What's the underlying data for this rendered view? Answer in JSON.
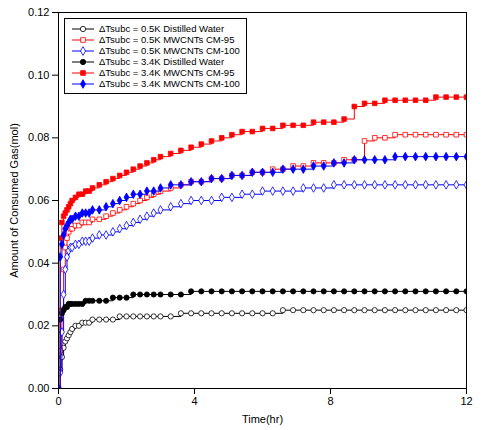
{
  "chart_data": {
    "type": "line",
    "line_style": "steps-post",
    "xlabel": "Time(hr)",
    "ylabel": "Amount of Consumed Gas(mol)",
    "xlim": [
      0,
      12
    ],
    "ylim": [
      0,
      0.12
    ],
    "xticks": [
      0,
      4,
      8,
      12
    ],
    "yticks": [
      {
        "value": 0,
        "label": "0.00"
      },
      {
        "value": 0.02,
        "label": "0.02"
      },
      {
        "value": 0.04,
        "label": "0.04"
      },
      {
        "value": 0.06,
        "label": "0.06"
      },
      {
        "value": 0.08,
        "label": "0.08"
      },
      {
        "value": 0.1,
        "label": "0.10"
      },
      {
        "value": 0.12,
        "label": "0.12"
      }
    ],
    "grid": false,
    "legend": "upper left",
    "series": [
      {
        "name": "ΔTsubc = 0.5K Distilled Water",
        "color": "black",
        "marker": "circle-open",
        "x": [
          0.05,
          0.1,
          0.15,
          0.2,
          0.25,
          0.3,
          0.35,
          0.4,
          0.5,
          0.6,
          0.7,
          0.8,
          0.9,
          1.0,
          1.2,
          1.4,
          1.6,
          1.8,
          2.0,
          2.2,
          2.4,
          2.6,
          2.8,
          3.0,
          3.3,
          3.6,
          3.9,
          4.2,
          4.5,
          4.8,
          5.1,
          5.4,
          5.7,
          6.0,
          6.3,
          6.6,
          6.9,
          7.2,
          7.5,
          7.8,
          8.1,
          8.4,
          8.7,
          9.0,
          9.3,
          9.6,
          9.9,
          10.2,
          10.5,
          10.8,
          11.1,
          11.4,
          11.7,
          12.0
        ],
        "values": [
          0.006,
          0.01,
          0.013,
          0.015,
          0.016,
          0.017,
          0.018,
          0.019,
          0.02,
          0.02,
          0.021,
          0.021,
          0.021,
          0.022,
          0.022,
          0.022,
          0.022,
          0.023,
          0.023,
          0.023,
          0.023,
          0.023,
          0.023,
          0.023,
          0.023,
          0.024,
          0.024,
          0.024,
          0.024,
          0.024,
          0.024,
          0.024,
          0.024,
          0.024,
          0.024,
          0.025,
          0.025,
          0.025,
          0.025,
          0.025,
          0.025,
          0.025,
          0.025,
          0.025,
          0.025,
          0.025,
          0.025,
          0.025,
          0.025,
          0.025,
          0.025,
          0.025,
          0.025,
          0.025
        ]
      },
      {
        "name": "ΔTsubc = 0.5K MWCNTs CM-95",
        "color": "red",
        "marker": "square-open",
        "x": [
          0.05,
          0.1,
          0.15,
          0.2,
          0.25,
          0.3,
          0.35,
          0.4,
          0.5,
          0.6,
          0.7,
          0.8,
          0.9,
          1.0,
          1.2,
          1.4,
          1.6,
          1.8,
          2.0,
          2.2,
          2.4,
          2.6,
          2.8,
          3.0,
          3.3,
          3.6,
          3.9,
          4.2,
          4.5,
          4.8,
          5.1,
          5.4,
          5.7,
          6.0,
          6.3,
          6.6,
          6.9,
          7.2,
          7.5,
          7.8,
          8.1,
          8.4,
          8.7,
          9.0,
          9.3,
          9.6,
          9.9,
          10.2,
          10.5,
          10.8,
          11.1,
          11.4,
          11.7,
          12.0
        ],
        "values": [
          0.012,
          0.025,
          0.038,
          0.045,
          0.048,
          0.05,
          0.051,
          0.051,
          0.052,
          0.052,
          0.053,
          0.053,
          0.053,
          0.054,
          0.054,
          0.055,
          0.056,
          0.057,
          0.058,
          0.059,
          0.06,
          0.061,
          0.062,
          0.063,
          0.064,
          0.065,
          0.066,
          0.066,
          0.067,
          0.067,
          0.068,
          0.068,
          0.069,
          0.069,
          0.07,
          0.07,
          0.071,
          0.071,
          0.072,
          0.072,
          0.072,
          0.073,
          0.073,
          0.079,
          0.08,
          0.08,
          0.081,
          0.081,
          0.081,
          0.081,
          0.081,
          0.081,
          0.081,
          0.081
        ]
      },
      {
        "name": "ΔTsubc = 0.5K MWCNTs CM-100",
        "color": "blue",
        "marker": "diamond-open",
        "x": [
          0.05,
          0.1,
          0.15,
          0.2,
          0.25,
          0.3,
          0.35,
          0.4,
          0.5,
          0.6,
          0.7,
          0.8,
          0.9,
          1.0,
          1.2,
          1.4,
          1.6,
          1.8,
          2.0,
          2.2,
          2.4,
          2.6,
          2.8,
          3.0,
          3.3,
          3.6,
          3.9,
          4.2,
          4.5,
          4.8,
          5.1,
          5.4,
          5.7,
          6.0,
          6.3,
          6.6,
          6.9,
          7.2,
          7.5,
          7.8,
          8.1,
          8.4,
          8.7,
          9.0,
          9.3,
          9.6,
          9.9,
          10.2,
          10.5,
          10.8,
          11.1,
          11.4,
          11.7,
          12.0
        ],
        "values": [
          0.005,
          0.018,
          0.03,
          0.038,
          0.042,
          0.044,
          0.045,
          0.045,
          0.046,
          0.046,
          0.047,
          0.047,
          0.047,
          0.048,
          0.049,
          0.049,
          0.05,
          0.051,
          0.052,
          0.053,
          0.054,
          0.055,
          0.056,
          0.057,
          0.058,
          0.059,
          0.06,
          0.06,
          0.06,
          0.061,
          0.061,
          0.062,
          0.062,
          0.063,
          0.063,
          0.063,
          0.063,
          0.064,
          0.064,
          0.064,
          0.065,
          0.065,
          0.065,
          0.065,
          0.065,
          0.065,
          0.065,
          0.065,
          0.065,
          0.065,
          0.065,
          0.065,
          0.065,
          0.065
        ]
      },
      {
        "name": "ΔTsubc = 3.4K Distilled Water",
        "color": "black",
        "marker": "circle",
        "x": [
          0.0,
          0.05,
          0.1,
          0.15,
          0.2,
          0.25,
          0.3,
          0.35,
          0.4,
          0.5,
          0.6,
          0.7,
          0.8,
          0.9,
          1.0,
          1.2,
          1.4,
          1.6,
          1.8,
          2.0,
          2.2,
          2.4,
          2.6,
          2.8,
          3.0,
          3.3,
          3.6,
          3.9,
          4.2,
          4.5,
          4.8,
          5.1,
          5.4,
          5.7,
          6.0,
          6.3,
          6.6,
          6.9,
          7.2,
          7.5,
          7.8,
          8.1,
          8.4,
          8.7,
          9.0,
          9.3,
          9.6,
          9.9,
          10.2,
          10.5,
          10.8,
          11.1,
          11.4,
          11.7,
          12.0
        ],
        "values": [
          0.0,
          0.022,
          0.024,
          0.025,
          0.026,
          0.026,
          0.027,
          0.027,
          0.027,
          0.027,
          0.027,
          0.027,
          0.028,
          0.028,
          0.028,
          0.028,
          0.028,
          0.029,
          0.029,
          0.029,
          0.03,
          0.03,
          0.03,
          0.03,
          0.03,
          0.03,
          0.03,
          0.031,
          0.031,
          0.031,
          0.031,
          0.031,
          0.031,
          0.031,
          0.031,
          0.031,
          0.031,
          0.031,
          0.031,
          0.031,
          0.031,
          0.031,
          0.031,
          0.031,
          0.031,
          0.031,
          0.031,
          0.031,
          0.031,
          0.031,
          0.031,
          0.031,
          0.031,
          0.031,
          0.031
        ]
      },
      {
        "name": "ΔTsubc = 3.4K MWCNTs CM-95",
        "color": "red",
        "marker": "square",
        "x": [
          0.0,
          0.05,
          0.1,
          0.15,
          0.2,
          0.25,
          0.3,
          0.35,
          0.4,
          0.5,
          0.6,
          0.7,
          0.8,
          0.9,
          1.0,
          1.2,
          1.4,
          1.6,
          1.8,
          2.0,
          2.2,
          2.4,
          2.6,
          2.8,
          3.0,
          3.3,
          3.6,
          3.9,
          4.2,
          4.5,
          4.8,
          5.1,
          5.4,
          5.7,
          6.0,
          6.3,
          6.6,
          6.9,
          7.2,
          7.5,
          7.8,
          8.1,
          8.4,
          8.7,
          9.0,
          9.3,
          9.6,
          9.9,
          10.2,
          10.5,
          10.8,
          11.1,
          11.4,
          11.7,
          12.0
        ],
        "values": [
          0.0,
          0.048,
          0.053,
          0.055,
          0.056,
          0.057,
          0.058,
          0.059,
          0.06,
          0.061,
          0.062,
          0.062,
          0.063,
          0.063,
          0.064,
          0.065,
          0.066,
          0.067,
          0.068,
          0.069,
          0.07,
          0.071,
          0.072,
          0.073,
          0.074,
          0.075,
          0.076,
          0.077,
          0.078,
          0.079,
          0.08,
          0.081,
          0.082,
          0.082,
          0.083,
          0.083,
          0.084,
          0.084,
          0.084,
          0.085,
          0.085,
          0.085,
          0.086,
          0.09,
          0.091,
          0.091,
          0.092,
          0.092,
          0.092,
          0.092,
          0.092,
          0.093,
          0.093,
          0.093,
          0.093
        ]
      },
      {
        "name": "ΔTsubc = 3.4K MWCNTs CM-100",
        "color": "blue",
        "marker": "diamond",
        "x": [
          0.0,
          0.05,
          0.1,
          0.15,
          0.2,
          0.25,
          0.3,
          0.35,
          0.4,
          0.5,
          0.6,
          0.7,
          0.8,
          0.9,
          1.0,
          1.2,
          1.4,
          1.6,
          1.8,
          2.0,
          2.2,
          2.4,
          2.6,
          2.8,
          3.0,
          3.3,
          3.6,
          3.9,
          4.2,
          4.5,
          4.8,
          5.1,
          5.4,
          5.7,
          6.0,
          6.3,
          6.6,
          6.9,
          7.2,
          7.5,
          7.8,
          8.1,
          8.4,
          8.7,
          9.0,
          9.3,
          9.6,
          9.9,
          10.2,
          10.5,
          10.8,
          11.1,
          11.4,
          11.7,
          12.0
        ],
        "values": [
          0.0,
          0.042,
          0.046,
          0.049,
          0.051,
          0.052,
          0.053,
          0.054,
          0.054,
          0.055,
          0.055,
          0.056,
          0.056,
          0.056,
          0.057,
          0.057,
          0.058,
          0.059,
          0.06,
          0.061,
          0.062,
          0.062,
          0.063,
          0.063,
          0.064,
          0.065,
          0.065,
          0.066,
          0.066,
          0.067,
          0.067,
          0.068,
          0.068,
          0.069,
          0.069,
          0.069,
          0.07,
          0.07,
          0.07,
          0.071,
          0.071,
          0.072,
          0.072,
          0.073,
          0.073,
          0.073,
          0.073,
          0.074,
          0.074,
          0.074,
          0.074,
          0.074,
          0.074,
          0.074,
          0.074
        ]
      }
    ]
  }
}
